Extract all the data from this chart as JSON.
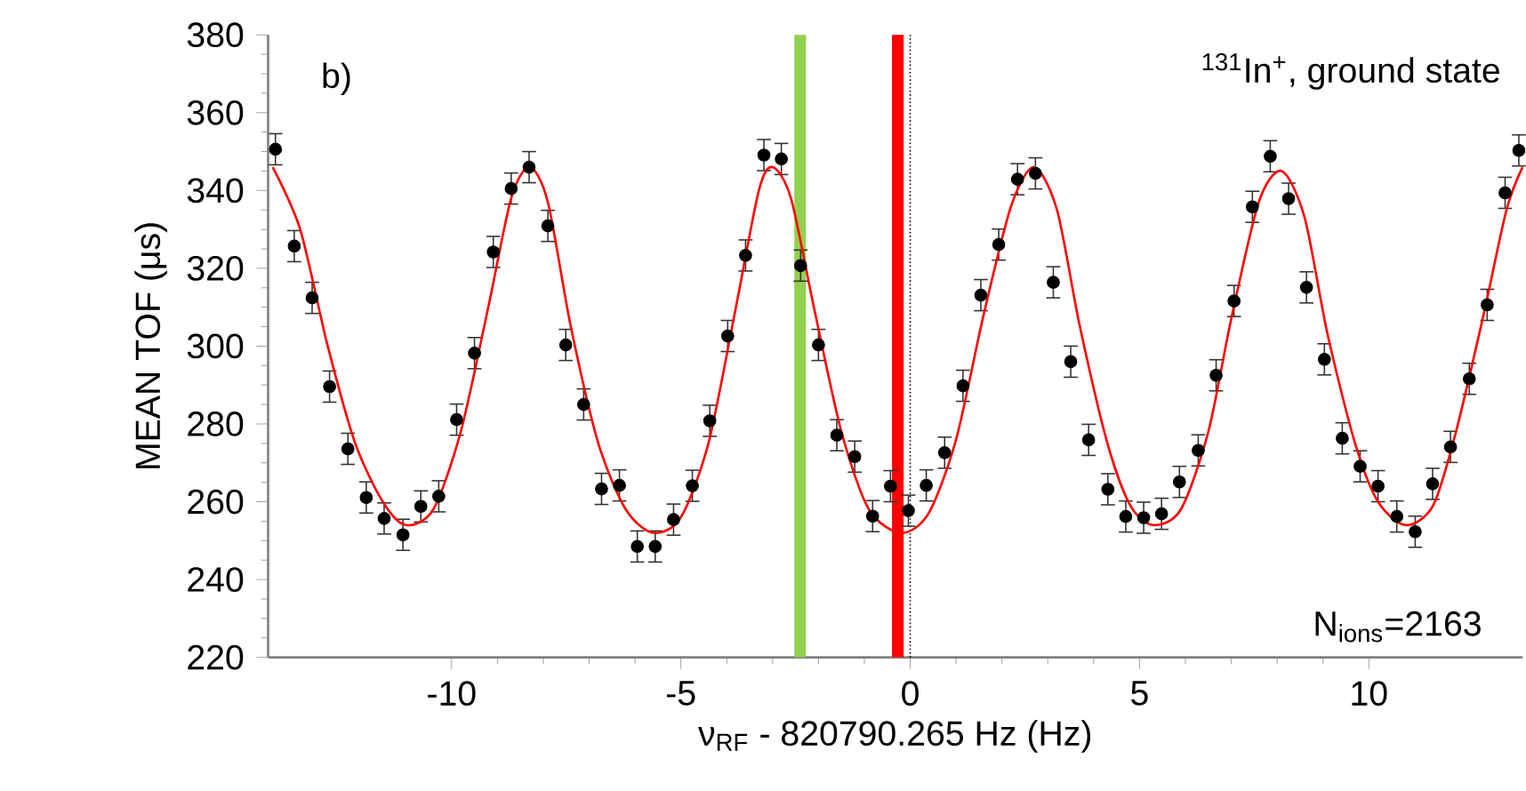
{
  "chart_data": {
    "type": "scatter",
    "xlabel": "ν$_{RF}$ - 820790.265 Hz (Hz)",
    "ylabel": "MEAN TOF (μs)",
    "xlim": [
      -14,
      13.35
    ],
    "ylim": [
      220,
      380
    ],
    "xticks": [
      -10,
      -5,
      0,
      5,
      10
    ],
    "yticks": [
      220,
      240,
      260,
      280,
      300,
      320,
      340,
      360,
      380
    ],
    "grid": false,
    "annotations": [
      "b)",
      "$^{131}$In$^{+}$, ground state",
      "N$_{ions}$=2163"
    ],
    "ref_lines": [
      {
        "axis": "x",
        "value": -2.4,
        "color": "#92d050",
        "line_style": "solid"
      },
      {
        "axis": "x",
        "value": -0.27,
        "color": "#ff0000",
        "line_style": "solid"
      },
      {
        "axis": "x",
        "value": 0,
        "color": "#000000",
        "line_style": "dotted"
      }
    ],
    "series": [
      {
        "color": "#000000",
        "marker": "circle",
        "x": [
          -13.84,
          -13.43,
          -13.04,
          -12.66,
          -12.26,
          -11.86,
          -11.47,
          -11.06,
          -10.67,
          -10.28,
          -9.89,
          -9.5,
          -9.09,
          -8.7,
          -8.31,
          -7.9,
          -7.51,
          -7.12,
          -6.73,
          -6.34,
          -5.95,
          -5.56,
          -5.16,
          -4.75,
          -4.37,
          -3.98,
          -3.59,
          -3.19,
          -2.81,
          -2.39,
          -2.0,
          -1.6,
          -1.21,
          -0.82,
          -0.43,
          -0.04,
          0.35,
          0.75,
          1.15,
          1.54,
          1.93,
          2.34,
          2.73,
          3.12,
          3.5,
          3.89,
          4.31,
          4.7,
          5.09,
          5.48,
          5.87,
          6.28,
          6.67,
          7.06,
          7.46,
          7.85,
          8.25,
          8.64,
          9.03,
          9.42,
          9.81,
          10.2,
          10.61,
          11.01,
          11.39,
          11.78,
          12.19,
          12.58,
          12.97,
          13.27
        ],
        "values": [
          350.6,
          325.7,
          312.4,
          289.6,
          273.6,
          261.1,
          255.7,
          251.5,
          258.8,
          261.4,
          281.1,
          298.2,
          324.2,
          340.5,
          346,
          330.9,
          300.3,
          285,
          263.3,
          264.2,
          248.5,
          248.5,
          255.4,
          264.1,
          280.8,
          302.6,
          323.3,
          349.1,
          348.1,
          320.7,
          300.3,
          277.1,
          271.6,
          256.3,
          264,
          257.7,
          264.2,
          272.6,
          289.8,
          313.1,
          326.1,
          342.9,
          344.4,
          316.4,
          296,
          275.9,
          263.2,
          256.2,
          255.9,
          256.9,
          265.1,
          273.2,
          292.5,
          311.6,
          335.8,
          348.8,
          337.9,
          315.1,
          296.6,
          276.3,
          269.1,
          264,
          256.2,
          252.3,
          264.6,
          274.1,
          291.6,
          310.6,
          339.4,
          350.3
        ],
        "errors": [
          4,
          4,
          4,
          4,
          4,
          4,
          4,
          4,
          4,
          4,
          4,
          4,
          4,
          4,
          4,
          4,
          4,
          4,
          4,
          4,
          4,
          4,
          4,
          4,
          4,
          4,
          4,
          4,
          4,
          4,
          4,
          4,
          4,
          4,
          4,
          4,
          4,
          4,
          4,
          4,
          4,
          4,
          4,
          4,
          4,
          4,
          4,
          4,
          4,
          4,
          4,
          4,
          4,
          4,
          4,
          4,
          4,
          4,
          4,
          4,
          4,
          4,
          4,
          4,
          4,
          4,
          4,
          4,
          4,
          4
        ]
      },
      {
        "type": "line",
        "color": "#ff0000",
        "marker": "none",
        "x": [
          -13.9,
          -13.3,
          -12.7,
          -12.1,
          -11.5,
          -11.0,
          -10.4,
          -9.8,
          -9.2,
          -8.7,
          -8.3,
          -7.9,
          -7.4,
          -6.8,
          -6.2,
          -5.6,
          -5.0,
          -4.4,
          -3.8,
          -3.3,
          -3.0,
          -2.6,
          -2.1,
          -1.5,
          -0.9,
          -0.2,
          0.4,
          1.0,
          1.6,
          2.2,
          2.7,
          3.2,
          3.7,
          4.3,
          4.8,
          5.3,
          5.9,
          6.5,
          7.0,
          7.6,
          8.1,
          8.6,
          9.1,
          9.7,
          10.2,
          10.8,
          11.4,
          11.9,
          12.5,
          13.0,
          13.35
        ],
        "values": [
          346,
          330,
          300,
          275,
          260,
          254,
          258,
          278,
          310,
          338,
          346,
          337,
          305,
          275,
          258,
          252,
          256,
          275,
          310,
          340,
          346,
          338,
          310,
          278,
          258,
          252,
          257,
          276,
          308,
          336,
          346,
          335,
          305,
          275,
          259,
          254,
          258,
          278,
          307,
          337,
          345,
          333,
          303,
          275,
          260,
          254,
          259,
          278,
          308,
          335,
          346
        ]
      }
    ]
  }
}
